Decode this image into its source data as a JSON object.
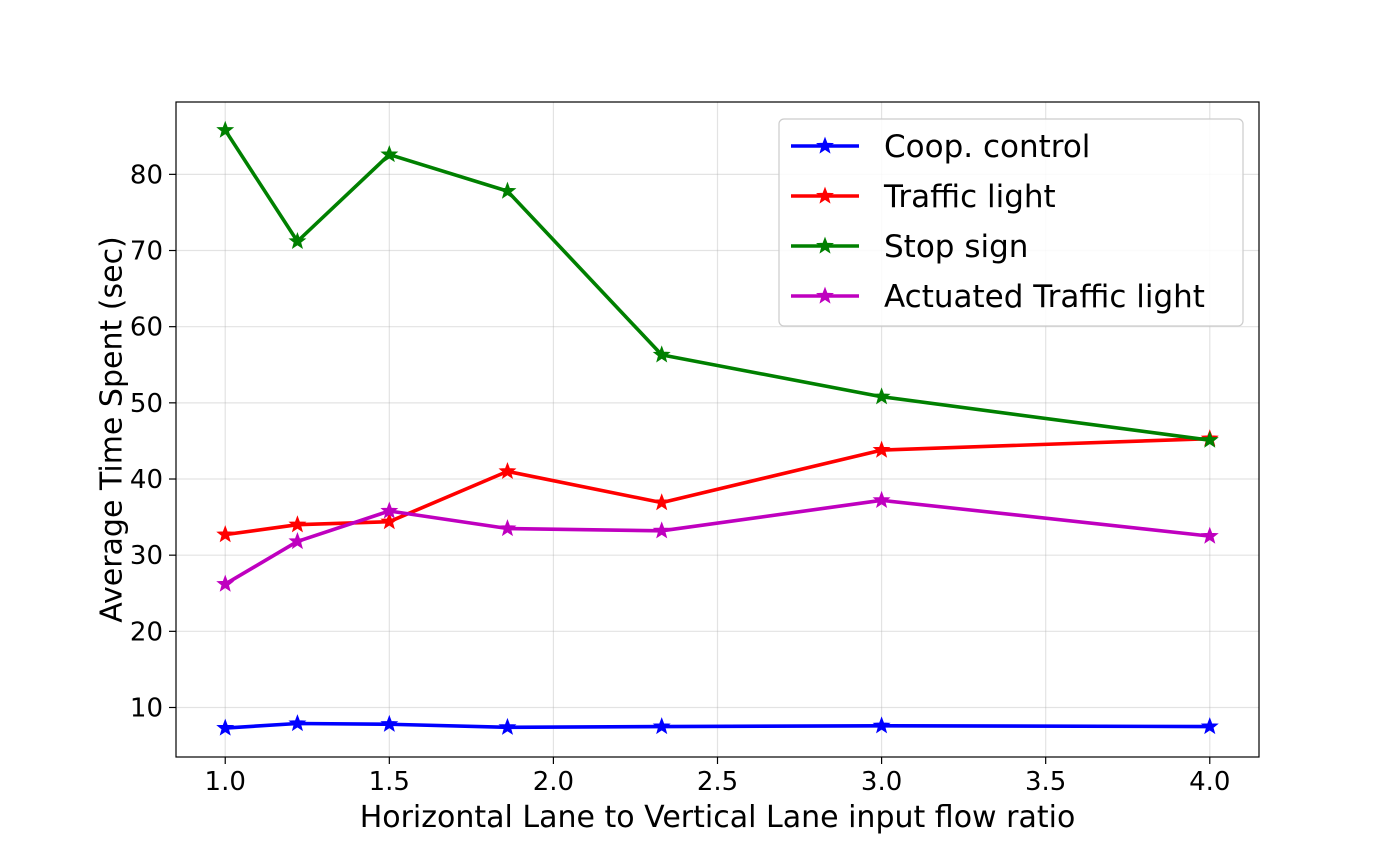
{
  "chart_data": {
    "type": "line",
    "title": "",
    "xlabel": "Horizontal Lane to Vertical Lane input flow ratio",
    "ylabel": "Average Time Spent (sec)",
    "x": [
      1.0,
      1.22,
      1.5,
      1.86,
      2.33,
      3.0,
      4.0
    ],
    "xlim": [
      0.85,
      4.15
    ],
    "ylim": [
      3.5,
      89.5
    ],
    "xticks": [
      "1.0",
      "1.5",
      "2.0",
      "2.5",
      "3.0",
      "3.5",
      "4.0"
    ],
    "yticks": [
      "10",
      "20",
      "30",
      "40",
      "50",
      "60",
      "70",
      "80"
    ],
    "grid": true,
    "legend_position": "top-right",
    "marker": "star",
    "series": [
      {
        "name": "Coop. control",
        "color": "#0000ff",
        "values": [
          7.3,
          7.9,
          7.8,
          7.4,
          7.5,
          7.6,
          7.5
        ]
      },
      {
        "name": "Traffic light",
        "color": "#ff0000",
        "values": [
          32.7,
          34.0,
          34.4,
          41.0,
          36.9,
          43.8,
          45.3
        ]
      },
      {
        "name": "Stop sign",
        "color": "#008000",
        "values": [
          85.8,
          71.2,
          82.6,
          77.8,
          56.3,
          50.8,
          45.1
        ]
      },
      {
        "name": "Actuated Traffic light",
        "color": "#bf00bf",
        "values": [
          26.2,
          31.8,
          35.8,
          33.5,
          33.2,
          37.2,
          32.5
        ]
      }
    ]
  }
}
